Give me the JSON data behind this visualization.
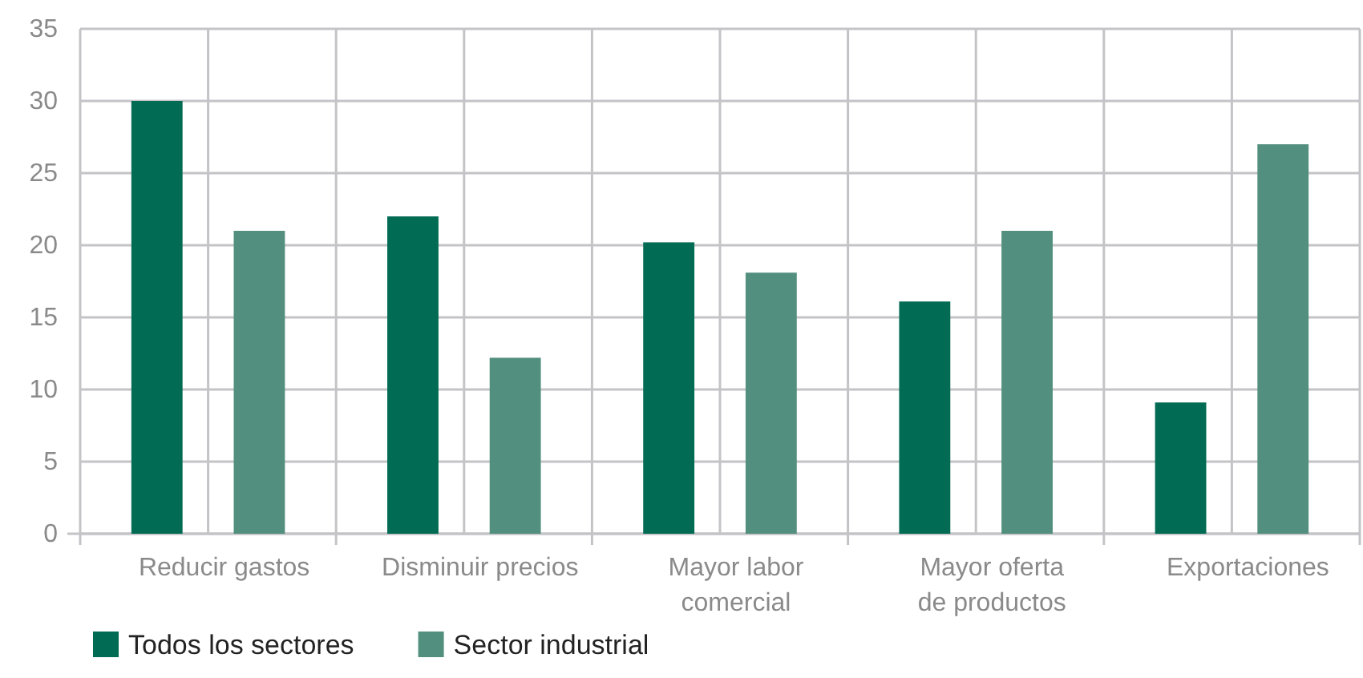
{
  "chart_data": {
    "type": "bar",
    "categories": [
      "Reducir gastos",
      "Disminuir precios",
      "Mayor labor comercial",
      "Mayor oferta de productos",
      "Exportaciones"
    ],
    "series": [
      {
        "name": "Todos los sectores",
        "color": "#026b53",
        "values": [
          30,
          22,
          20.2,
          16.1,
          9.1
        ]
      },
      {
        "name": "Sector industrial",
        "color": "#528f7e",
        "values": [
          21,
          12.2,
          18.1,
          21,
          27
        ]
      }
    ],
    "ylim": [
      0,
      35
    ],
    "yticks": [
      0,
      5,
      10,
      15,
      20,
      25,
      30,
      35
    ],
    "grid": true,
    "legend": "bottom left"
  }
}
